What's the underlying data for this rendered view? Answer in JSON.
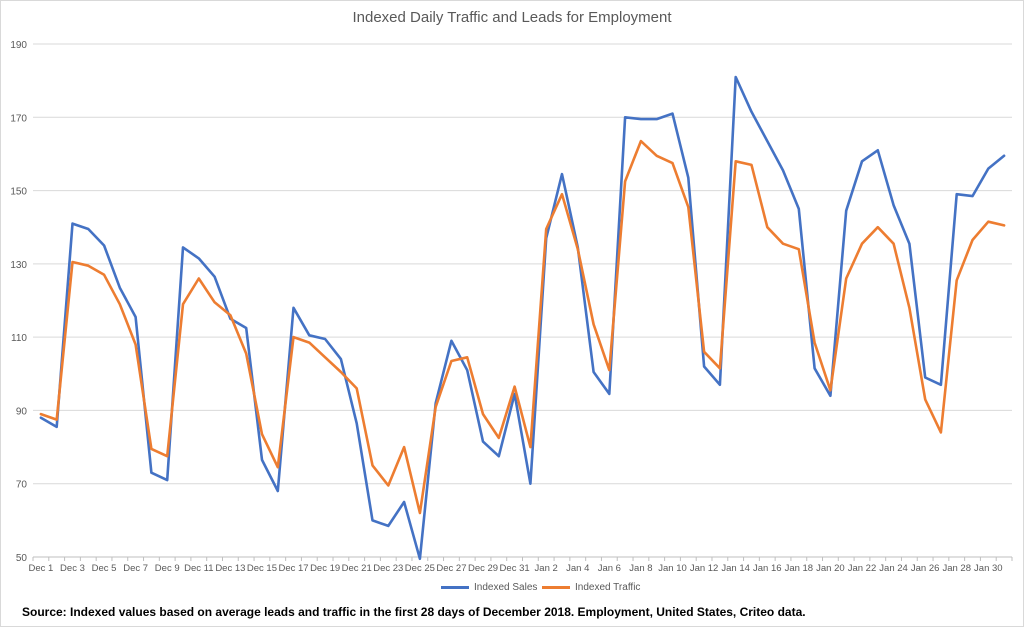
{
  "chart_data": {
    "type": "line",
    "title": "Indexed Daily Traffic and Leads for Employment",
    "xlabel": "",
    "ylabel": "",
    "ylim": [
      50,
      190
    ],
    "yticks": [
      50,
      70,
      90,
      110,
      130,
      150,
      170,
      190
    ],
    "grid": true,
    "legend_position": "bottom",
    "x": [
      "Dec 1",
      "Dec 2",
      "Dec 3",
      "Dec 4",
      "Dec 5",
      "Dec 6",
      "Dec 7",
      "Dec 8",
      "Dec 9",
      "Dec 10",
      "Dec 11",
      "Dec 12",
      "Dec 13",
      "Dec 14",
      "Dec 15",
      "Dec 16",
      "Dec 17",
      "Dec 18",
      "Dec 19",
      "Dec 20",
      "Dec 21",
      "Dec 22",
      "Dec 23",
      "Dec 24",
      "Dec 25",
      "Dec 26",
      "Dec 27",
      "Dec 28",
      "Dec 29",
      "Dec 30",
      "Dec 31",
      "Jan 1",
      "Jan 2",
      "Jan 3",
      "Jan 4",
      "Jan 5",
      "Jan 6",
      "Jan 7",
      "Jan 8",
      "Jan 9",
      "Jan 10",
      "Jan 11",
      "Jan 12",
      "Jan 13",
      "Jan 14",
      "Jan 15",
      "Jan 16",
      "Jan 17",
      "Jan 18",
      "Jan 19",
      "Jan 20",
      "Jan 21",
      "Jan 22",
      "Jan 23",
      "Jan 24",
      "Jan 25",
      "Jan 26",
      "Jan 27",
      "Jan 28",
      "Jan 29",
      "Jan 30",
      "Jan 31"
    ],
    "tick_labels": [
      "Dec 1",
      "Dec 3",
      "Dec 5",
      "Dec 7",
      "Dec 9",
      "Dec 11",
      "Dec 13",
      "Dec 15",
      "Dec 17",
      "Dec 19",
      "Dec 21",
      "Dec 23",
      "Dec 25",
      "Dec 27",
      "Dec 29",
      "Dec 31",
      "Jan 2",
      "Jan 4",
      "Jan 6",
      "Jan 8",
      "Jan 10",
      "Jan 12",
      "Jan 14",
      "Jan 16",
      "Jan 18",
      "Jan 20",
      "Jan 22",
      "Jan 24",
      "Jan 26",
      "Jan 28",
      "Jan 30"
    ],
    "series": [
      {
        "name": "Indexed Sales",
        "color": "#4472c4",
        "values": [
          88,
          85.5,
          141,
          139.5,
          135,
          123.5,
          115.5,
          73,
          71,
          134.5,
          131.5,
          126.5,
          115,
          112.5,
          76.5,
          68,
          118,
          110.5,
          109.5,
          104,
          86.5,
          60,
          58.5,
          65,
          49.5,
          92,
          109,
          101,
          81.5,
          77.5,
          94.5,
          70,
          137,
          154.5,
          134.5,
          100.5,
          94.5,
          170,
          169.5,
          169.5,
          171,
          153.5,
          102,
          97,
          181,
          171.5,
          163.5,
          155.5,
          145,
          101.5,
          94,
          144.5,
          158,
          161,
          146,
          135.5,
          99,
          97,
          149,
          148.5,
          156,
          159.5
        ]
      },
      {
        "name": "Indexed Traffic",
        "color": "#ed7d31",
        "values": [
          89,
          87.5,
          130.5,
          129.5,
          127,
          119,
          108,
          79.5,
          77.5,
          119,
          126,
          119.5,
          116,
          105.5,
          83.5,
          74.5,
          110,
          108.5,
          104.5,
          100.5,
          96,
          75,
          69.5,
          80,
          62,
          91,
          103.5,
          104.5,
          89,
          82.5,
          96.5,
          80,
          139.5,
          149,
          134,
          113.5,
          101,
          152.5,
          163.5,
          159.5,
          157.5,
          145.5,
          106,
          101.5,
          158,
          157,
          140,
          135.5,
          134,
          108.5,
          95.5,
          126,
          135.5,
          140,
          135.5,
          118,
          93,
          84,
          125.5,
          136.5,
          141.5,
          140.5
        ]
      }
    ]
  },
  "footer": {
    "source": "Source: Indexed values based on average leads and traffic in the first 28 days of December 2018.  Employment, United States, Criteo data."
  }
}
